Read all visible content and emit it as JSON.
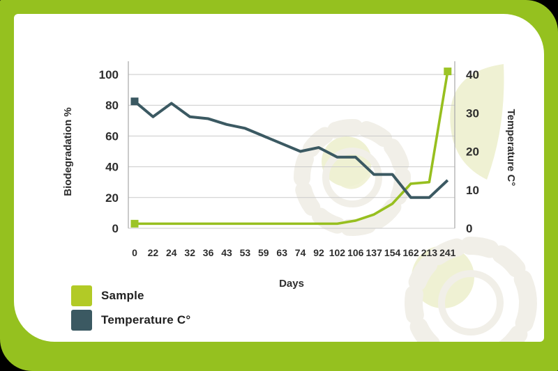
{
  "frame": {
    "border_color": "#95c11f",
    "card_color": "#ffffff",
    "outer_background": "#000000"
  },
  "watermark": {
    "gear_color": "#f1efe8",
    "leaf_color": "#eff1d3"
  },
  "chart_data": {
    "type": "line",
    "xlabel": "Days",
    "ylabel_left": "Biodegradation  %",
    "ylabel_right": "Temperature C°",
    "categories": [
      "0",
      "22",
      "24",
      "32",
      "36",
      "43",
      "53",
      "59",
      "63",
      "74",
      "92",
      "102",
      "106",
      "137",
      "154",
      "162",
      "213",
      "241"
    ],
    "left_axis": {
      "range": [
        0,
        100
      ],
      "ticks": [
        "0",
        "20",
        "40",
        "60",
        "80",
        "100"
      ],
      "tick_values": [
        0,
        20,
        40,
        60,
        80,
        100
      ]
    },
    "right_axis": {
      "range": [
        0,
        40
      ],
      "ticks": [
        "0",
        "10",
        "20",
        "30",
        "40"
      ],
      "tick_values": [
        0,
        10,
        20,
        30,
        40
      ]
    },
    "grid": true,
    "gridline_color": "#c9c9c9",
    "axisline_color": "#adadad",
    "tick_text_color": "#2d2d2d",
    "legend_position": "bottom-left",
    "series": [
      {
        "name": "Sample",
        "axis": "left",
        "color": "#97bf1f",
        "marker_color": "#9cc427",
        "markers": "first-last",
        "values": [
          3,
          3,
          3,
          3,
          3,
          3,
          3,
          3,
          3,
          3,
          3,
          3,
          5,
          9,
          16,
          29,
          30,
          102
        ]
      },
      {
        "name": "Temperature C°",
        "axis": "right",
        "color": "#3b5962",
        "marker_color": "#3b5962",
        "markers": "first",
        "values": [
          33,
          29,
          32.5,
          29,
          28.5,
          27,
          26,
          24,
          22,
          20,
          21,
          18.5,
          18.5,
          14,
          14,
          8,
          8,
          12.5
        ]
      }
    ]
  },
  "legend": {
    "items": [
      {
        "label": "Sample",
        "color": "#b2ca26"
      },
      {
        "label": "Temperature C°",
        "color": "#3b5962"
      }
    ]
  }
}
